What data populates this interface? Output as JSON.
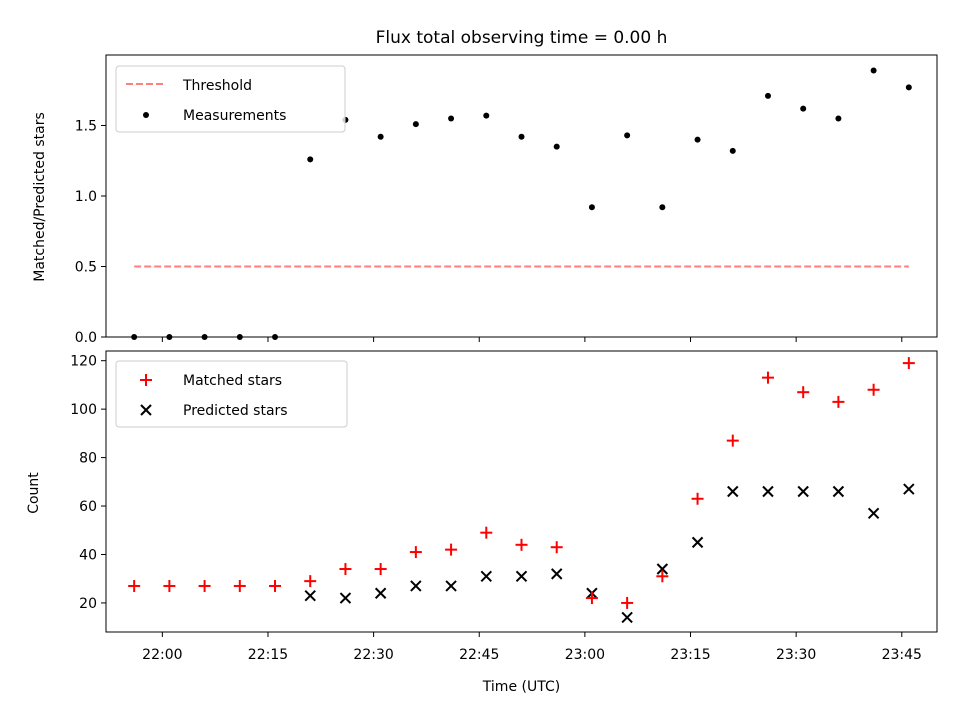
{
  "chart_data": [
    {
      "type": "scatter",
      "title": "Flux total observing time = 0.00 h",
      "ylabel": "Matched/Predicted stars",
      "ylim": [
        0,
        2.0
      ],
      "yticks": [
        0.0,
        0.5,
        1.0,
        1.5
      ],
      "ytick_labels": [
        "0.0",
        "0.5",
        "1.0",
        "1.5"
      ],
      "grid": false,
      "legend_position": "top-left",
      "x": [
        "21:56",
        "22:01",
        "22:06",
        "22:11",
        "22:16",
        "22:21",
        "22:26",
        "22:31",
        "22:36",
        "22:41",
        "22:46",
        "22:51",
        "22:56",
        "23:01",
        "23:06",
        "23:11",
        "23:16",
        "23:21",
        "23:26",
        "23:31",
        "23:36",
        "23:41",
        "23:46"
      ],
      "series": [
        {
          "name": "Threshold",
          "kind": "line",
          "style": "dashed",
          "color": "#ff7f7f",
          "x": [
            "21:56",
            "23:46"
          ],
          "values": [
            0.5,
            0.5
          ]
        },
        {
          "name": "Measurements",
          "kind": "scatter",
          "marker": "dot",
          "color": "#000000",
          "values": [
            0.0,
            0.0,
            0.0,
            0.0,
            0.0,
            1.26,
            1.54,
            1.42,
            1.51,
            1.55,
            1.57,
            1.42,
            1.35,
            0.92,
            1.43,
            0.92,
            1.4,
            1.32,
            1.71,
            1.62,
            1.55,
            1.89,
            1.77
          ]
        }
      ]
    },
    {
      "type": "scatter",
      "xlabel": "Time (UTC)",
      "ylabel": "Count",
      "ylim": [
        8,
        124
      ],
      "yticks": [
        20,
        40,
        60,
        80,
        100,
        120
      ],
      "ytick_labels": [
        "20",
        "40",
        "60",
        "80",
        "100",
        "120"
      ],
      "xticks": [
        "22:00",
        "22:15",
        "22:30",
        "22:45",
        "23:00",
        "23:15",
        "23:30",
        "23:45"
      ],
      "grid": false,
      "legend_position": "top-left",
      "x": [
        "21:56",
        "22:01",
        "22:06",
        "22:11",
        "22:16",
        "22:21",
        "22:26",
        "22:31",
        "22:36",
        "22:41",
        "22:46",
        "22:51",
        "22:56",
        "23:01",
        "23:06",
        "23:11",
        "23:16",
        "23:21",
        "23:26",
        "23:31",
        "23:36",
        "23:41",
        "23:46"
      ],
      "series": [
        {
          "name": "Matched stars",
          "marker": "plus",
          "color": "#ff0000",
          "values": [
            27,
            27,
            27,
            27,
            27,
            29,
            34,
            34,
            41,
            42,
            49,
            44,
            43,
            22,
            20,
            31,
            63,
            87,
            113,
            107,
            103,
            108,
            119
          ]
        },
        {
          "name": "Predicted stars",
          "marker": "x",
          "color": "#000000",
          "x": [
            "22:21",
            "22:26",
            "22:31",
            "22:36",
            "22:41",
            "22:46",
            "22:51",
            "22:56",
            "23:01",
            "23:06",
            "23:11",
            "23:16",
            "23:21",
            "23:26",
            "23:31",
            "23:36",
            "23:41",
            "23:46"
          ],
          "values": [
            23,
            22,
            24,
            27,
            27,
            31,
            31,
            32,
            24,
            14,
            34,
            45,
            66,
            66,
            66,
            66,
            57,
            67
          ]
        }
      ]
    }
  ]
}
